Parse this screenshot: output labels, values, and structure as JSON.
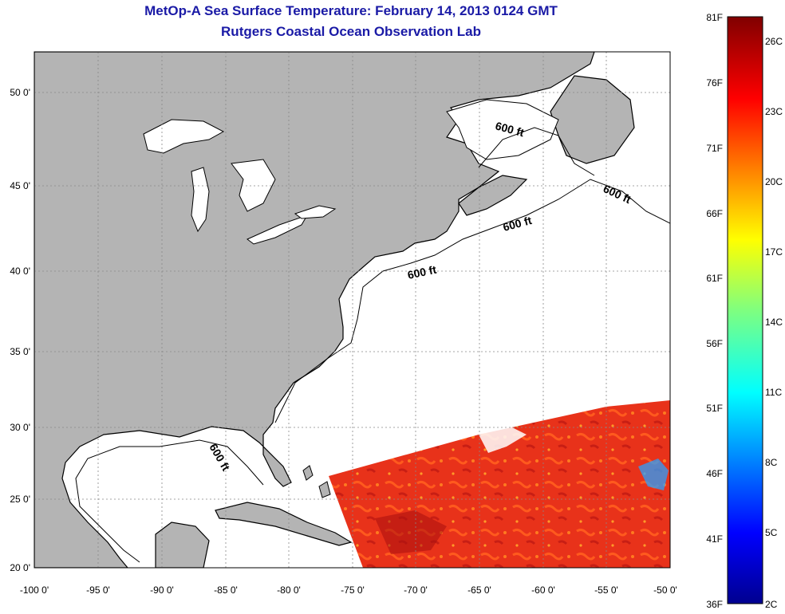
{
  "header": {
    "title": "MetOp-A Sea Surface Temperature:  February 14, 2013 0124 GMT",
    "subtitle": "Rutgers Coastal Ocean Observation Lab"
  },
  "map": {
    "lat_ticks": [
      "50 0'",
      "45 0'",
      "40 0'",
      "35 0'",
      "30 0'",
      "25 0'",
      "20 0'"
    ],
    "lon_ticks": [
      "-100 0'",
      "-95 0'",
      "-90 0'",
      "-85 0'",
      "-80 0'",
      "-75 0'",
      "-70 0'",
      "-65 0'",
      "-60 0'",
      "-55 0'",
      "-50 0'"
    ],
    "contour_labels": [
      "600 ft",
      "600 ft",
      "600 ft",
      "600 ft",
      "600 ft"
    ],
    "land_color": "#b4b4b4",
    "ocean_color": "#ffffff"
  },
  "colorbar": {
    "fahrenheit_labels": [
      "81F",
      "76F",
      "71F",
      "66F",
      "61F",
      "56F",
      "51F",
      "46F",
      "41F",
      "36F"
    ],
    "celsius_labels": [
      "26C",
      "23C",
      "20C",
      "17C",
      "14C",
      "11C",
      "8C",
      "5C",
      "2C"
    ]
  }
}
